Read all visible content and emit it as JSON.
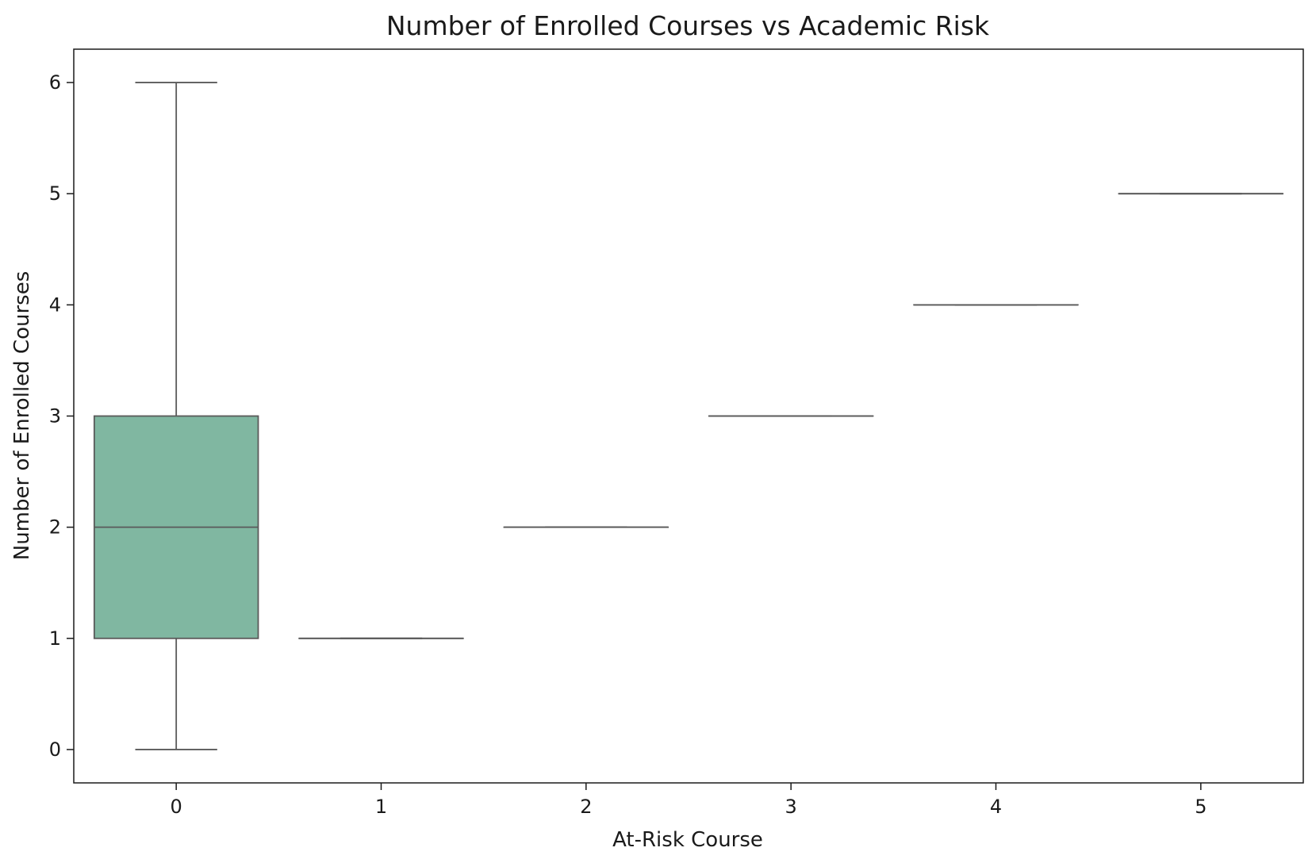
{
  "chart_data": {
    "type": "box",
    "title": "Number of Enrolled Courses vs Academic Risk",
    "xlabel": "At-Risk Course",
    "ylabel": "Number of Enrolled Courses",
    "categories": [
      "0",
      "1",
      "2",
      "3",
      "4",
      "5"
    ],
    "ylim": [
      -0.3,
      6.3
    ],
    "yticks": [
      0,
      1,
      2,
      3,
      4,
      5,
      6
    ],
    "grid": false,
    "box_color": "#80b7a1",
    "line_color": "#5a5a5a",
    "boxes": [
      {
        "category": "0",
        "whisker_low": 0,
        "q1": 1,
        "median": 2,
        "q3": 3,
        "whisker_high": 6
      },
      {
        "category": "1",
        "whisker_low": 1,
        "q1": 1,
        "median": 1,
        "q3": 1,
        "whisker_high": 1
      },
      {
        "category": "2",
        "whisker_low": 2,
        "q1": 2,
        "median": 2,
        "q3": 2,
        "whisker_high": 2
      },
      {
        "category": "3",
        "whisker_low": 3,
        "q1": 3,
        "median": 3,
        "q3": 3,
        "whisker_high": 3
      },
      {
        "category": "4",
        "whisker_low": 4,
        "q1": 4,
        "median": 4,
        "q3": 4,
        "whisker_high": 4
      },
      {
        "category": "5",
        "whisker_low": 5,
        "q1": 5,
        "median": 5,
        "q3": 5,
        "whisker_high": 5
      }
    ]
  }
}
